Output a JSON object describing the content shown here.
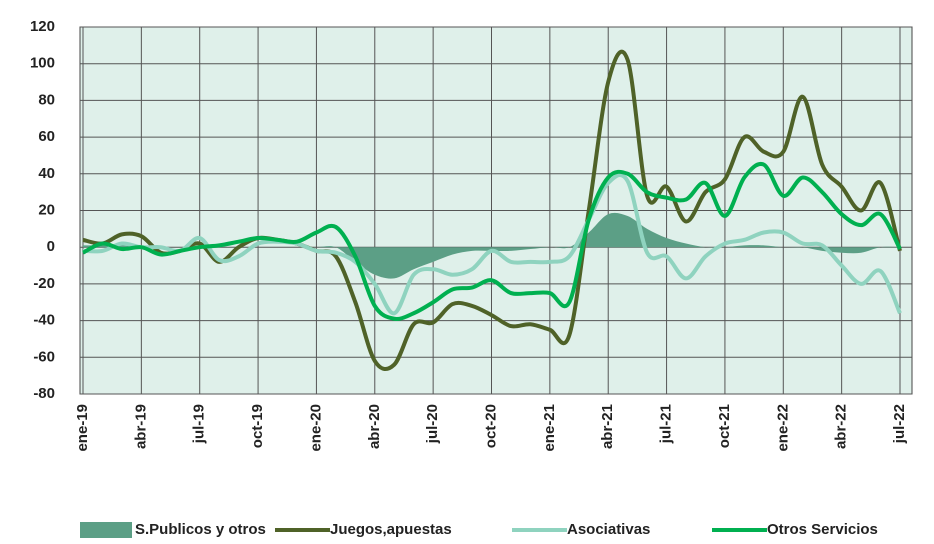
{
  "chart_data": {
    "type": "line",
    "categories": [
      "ene-19",
      null,
      null,
      "abr-19",
      null,
      null,
      "jul-19",
      null,
      null,
      "oct-19",
      null,
      null,
      "ene-20",
      null,
      null,
      "abr-20",
      null,
      null,
      "jul-20",
      null,
      null,
      "oct-20",
      null,
      null,
      "ene-21",
      null,
      null,
      "abr-21",
      null,
      null,
      "jul-21",
      null,
      null,
      "oct-21",
      null,
      null,
      "ene-22",
      null,
      null,
      "abr-22",
      null,
      null,
      "jul-22"
    ],
    "series": [
      {
        "name": "S.Publicos y otros",
        "color": "#5c9f86",
        "style": "area",
        "values": [
          1,
          1,
          1,
          0,
          0,
          0,
          0,
          0,
          0,
          0,
          0,
          0,
          0,
          0,
          -8,
          -15,
          -17,
          -12,
          -8,
          -4,
          -2,
          -2,
          -2,
          -1,
          0,
          0,
          8,
          18,
          17,
          10,
          5,
          2,
          0,
          0,
          1,
          1,
          0,
          0,
          -2,
          -3,
          -3,
          0,
          0
        ]
      },
      {
        "name": "Juegos,apuestas",
        "color": "#4f6228",
        "style": "line",
        "values": [
          4,
          2,
          7,
          6,
          -3,
          -2,
          2,
          -8,
          0,
          5,
          4,
          2,
          -2,
          -5,
          -30,
          -62,
          -64,
          -42,
          -41,
          -31,
          -32,
          -37,
          -43,
          -42,
          -45,
          -48,
          20,
          90,
          102,
          28,
          33,
          14,
          30,
          37,
          60,
          52,
          52,
          82,
          45,
          33,
          20,
          35,
          -2
        ]
      },
      {
        "name": "Asociativas",
        "color": "#8fd3bf",
        "style": "line",
        "values": [
          -2,
          -2,
          2,
          0,
          0,
          -2,
          5,
          -7,
          -5,
          2,
          3,
          2,
          -2,
          -3,
          -8,
          -20,
          -36,
          -15,
          -12,
          -15,
          -12,
          -2,
          -8,
          -8,
          -8,
          -5,
          15,
          35,
          36,
          -3,
          -5,
          -17,
          -5,
          2,
          4,
          8,
          8,
          2,
          1,
          -10,
          -20,
          -13,
          -36
        ]
      },
      {
        "name": "Otros Servicios",
        "color": "#00b050",
        "style": "line",
        "values": [
          -3,
          2,
          -1,
          0,
          -4,
          -2,
          0,
          1,
          3,
          5,
          4,
          3,
          8,
          11,
          -5,
          -32,
          -39,
          -36,
          -30,
          -23,
          -22,
          -18,
          -25,
          -25,
          -25,
          -30,
          15,
          38,
          40,
          30,
          27,
          26,
          35,
          17,
          38,
          45,
          28,
          38,
          30,
          18,
          12,
          18,
          -1
        ]
      }
    ],
    "ylim": [
      -80,
      120
    ],
    "yticks": [
      -80,
      -60,
      -40,
      -20,
      0,
      20,
      40,
      60,
      80,
      100,
      120
    ],
    "grid": true,
    "negative_tick_color": "#ff0000",
    "plot_background": "#dff0ea",
    "legend": "bottom"
  }
}
